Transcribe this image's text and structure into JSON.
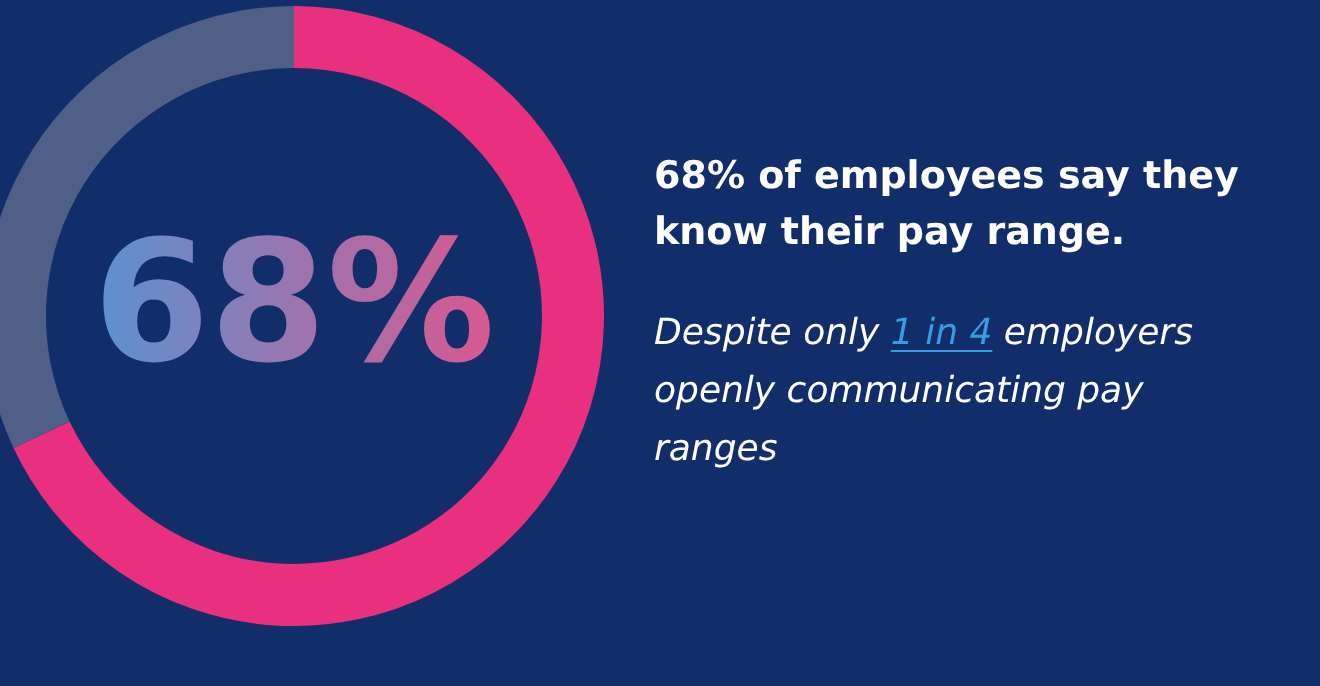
{
  "chart_data": {
    "type": "donut",
    "title": "68% of employees say they know their pay range.",
    "categories": [
      null,
      null
    ],
    "values": [
      68,
      32
    ],
    "colors": [
      "#e8307f",
      "#4f5f87"
    ],
    "value_labels": [
      "68%",
      null
    ],
    "annotations": [
      "Despite only",
      "1 in 4",
      "employers openly communicating pay ranges"
    ],
    "legend": false
  }
}
